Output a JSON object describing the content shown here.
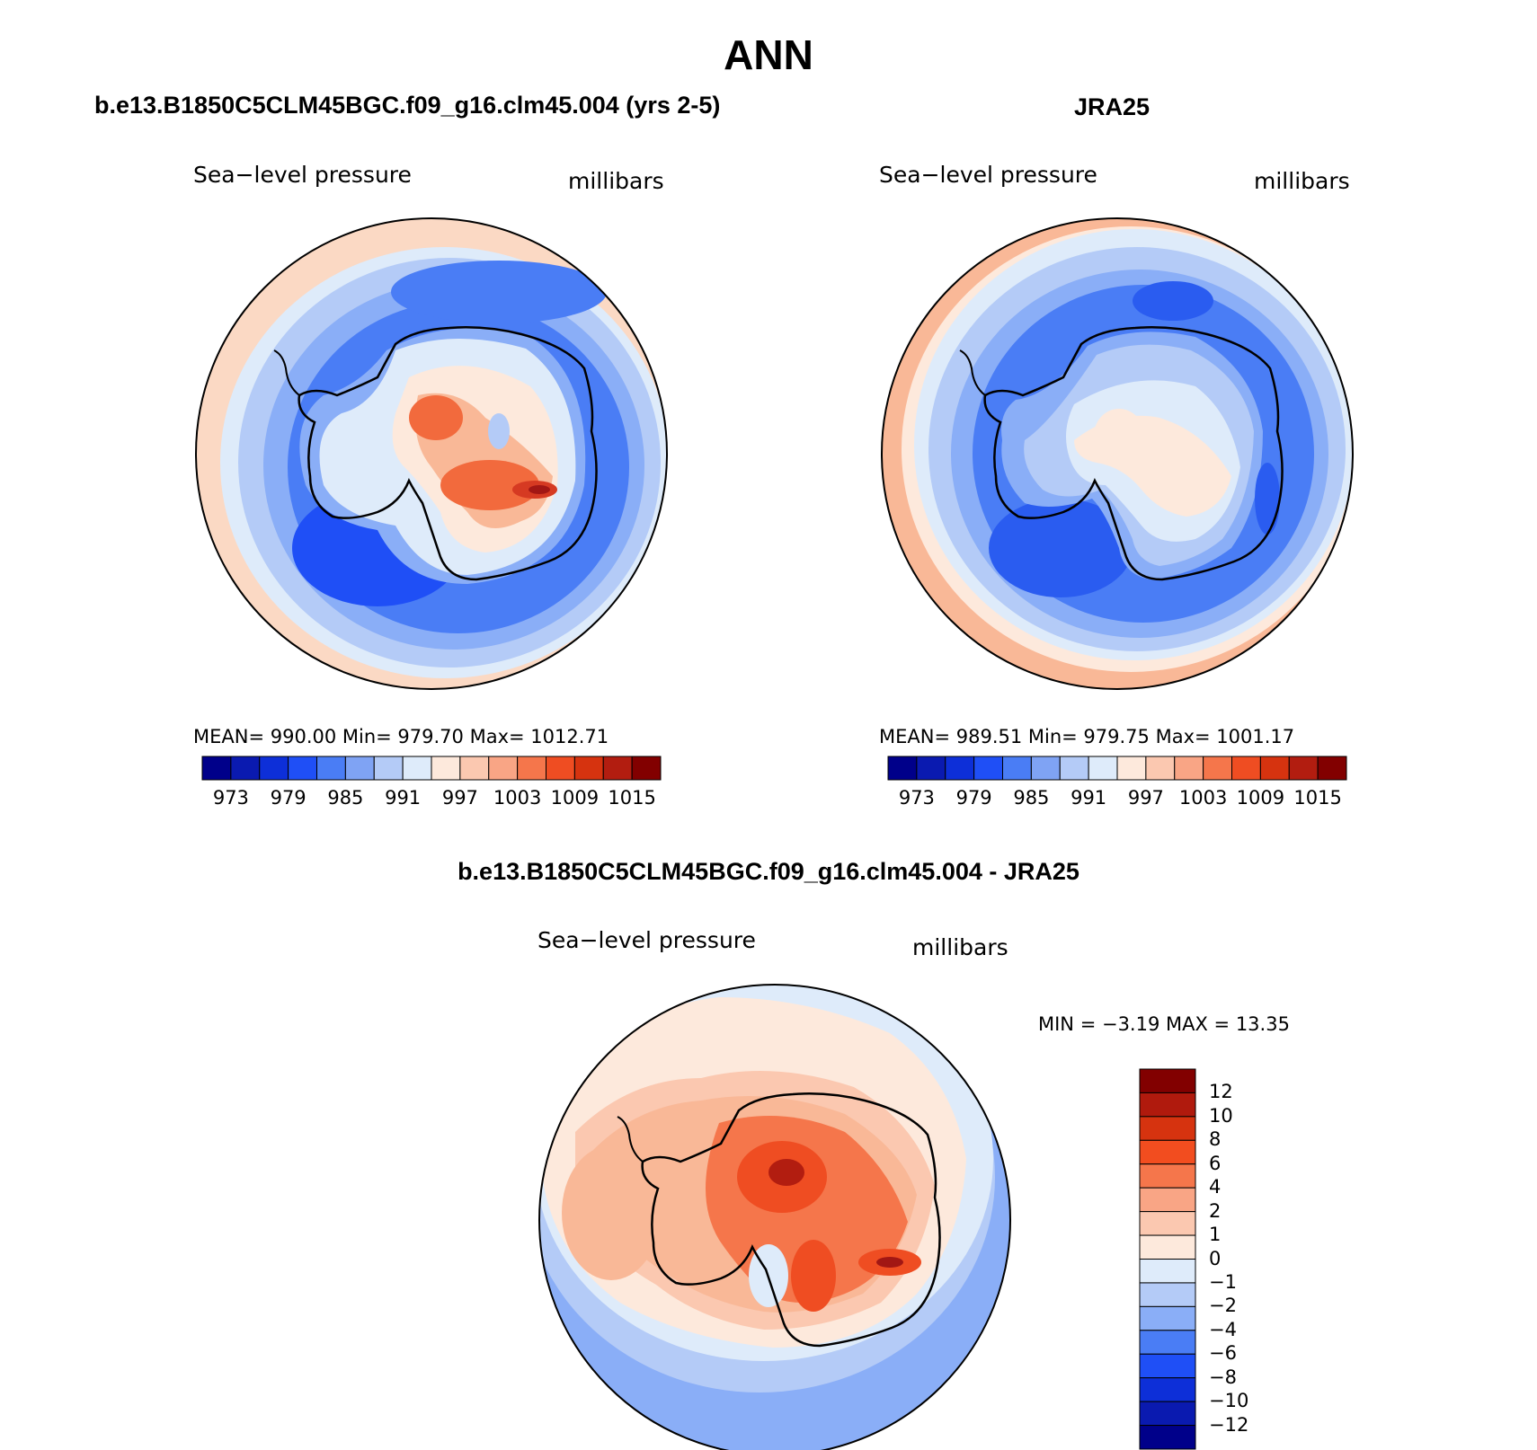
{
  "page_title": "ANN",
  "colors": {
    "ocean_dark": "#2a5cf0",
    "ocean_mid": "#3e74f7",
    "ocean_light": "#8aaef7",
    "pale_blue": "#dbe9f9",
    "cream": "#fde9dc",
    "salmon": "#f9b897",
    "orange": "#f26a3d",
    "red": "#d63a22",
    "dark_red": "#a21714",
    "outline": "#000000"
  },
  "panels": {
    "model": {
      "title": "b.e13.B1850C5CLM45BGC.f09_g16.clm45.004 (yrs 2-5)",
      "variable": "Sea−level pressure",
      "units": "millibars",
      "stats": "MEAN=  990.00    Min=  979.70    Max=  1012.71"
    },
    "obs": {
      "title": "JRA25",
      "variable": "Sea−level pressure",
      "units": "millibars",
      "stats": "MEAN=  989.51    Min=  979.75    Max=  1001.17"
    },
    "diff": {
      "title": "b.e13.B1850C5CLM45BGC.f09_g16.clm45.004 - JRA25",
      "variable": "Sea−level pressure",
      "units": "millibars",
      "stats": "MIN =    −3.19  MAX =    13.35"
    }
  },
  "abs_colorbar": {
    "colors": [
      "#00008a",
      "#0a1ab0",
      "#0d2fd8",
      "#1f4ff6",
      "#4a7df5",
      "#7fa3f4",
      "#b4cbf7",
      "#deebfa",
      "#fde9dc",
      "#fbc8b0",
      "#f9a585",
      "#f5764b",
      "#ef4d22",
      "#d6330f",
      "#b21d10",
      "#820000"
    ],
    "labels": [
      "973",
      "979",
      "985",
      "991",
      "997",
      "1003",
      "1009",
      "1015"
    ]
  },
  "diff_colorbar": {
    "colors": [
      "#820000",
      "#b01a0d",
      "#d6330f",
      "#f24d1f",
      "#f5764b",
      "#f9a585",
      "#fbc8b0",
      "#fde9dc",
      "#deebfa",
      "#b4cbf7",
      "#8aaef7",
      "#4a7df5",
      "#1f4ff6",
      "#0d2fd8",
      "#0a1ab0",
      "#00008a"
    ],
    "labels": [
      "12",
      "10",
      "8",
      "6",
      "4",
      "2",
      "1",
      "0",
      "−1",
      "−2",
      "−4",
      "−6",
      "−8",
      "−10",
      "−12"
    ]
  }
}
